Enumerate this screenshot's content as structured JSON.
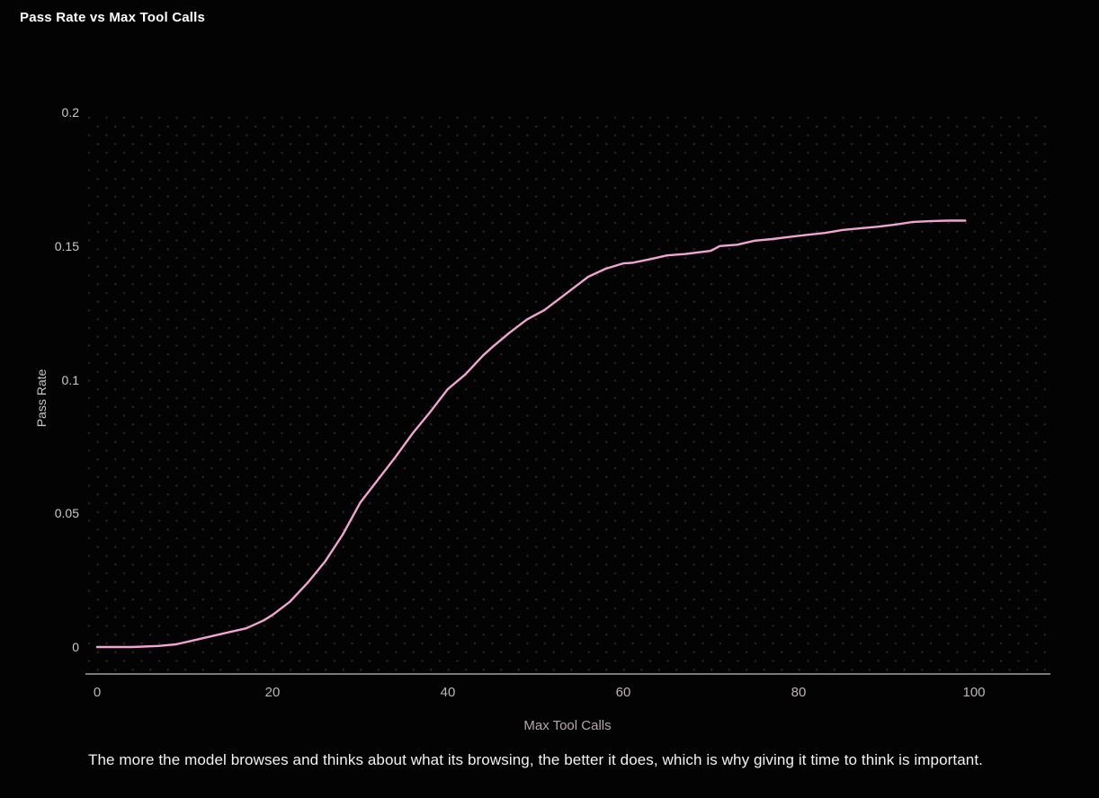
{
  "page": {
    "title": "Pass Rate vs Max Tool Calls",
    "caption": "The more the model browses and thinks about what its browsing, the better it does, which is why giving it time to think is important."
  },
  "colors": {
    "background": "#030303",
    "line": "#f0a4d2",
    "title_text": "#ffffff",
    "caption_text": "#f2f2f2",
    "y_tick_text": "#cbcbcb",
    "x_tick_text": "#bdb4bb",
    "axis_line": "#7a7a7a",
    "dot_grid": "#272727"
  },
  "chart_data": {
    "type": "line",
    "title": "Pass Rate vs Max Tool Calls",
    "xlabel": "Max Tool Calls",
    "ylabel": "Pass Rate",
    "xlim": [
      0,
      108
    ],
    "ylim": [
      -0.0095,
      0.2
    ],
    "x_ticks": [
      0,
      20,
      40,
      60,
      80,
      100
    ],
    "y_ticks": [
      {
        "value": 0,
        "label": "0"
      },
      {
        "value": 0.05,
        "label": "0.05"
      },
      {
        "value": 0.1,
        "label": "0.1"
      },
      {
        "value": 0.15,
        "label": "0.15"
      },
      {
        "value": 0.2,
        "label": "0.2"
      }
    ],
    "grid": "dotted background pattern, no gridlines",
    "legend": "none",
    "series": [
      {
        "name": "Pass Rate",
        "color": "#f0a4d2",
        "points": [
          [
            0,
            0.0
          ],
          [
            4,
            0.0
          ],
          [
            7,
            0.0004
          ],
          [
            9,
            0.001
          ],
          [
            11,
            0.0025
          ],
          [
            13,
            0.004
          ],
          [
            15,
            0.0055
          ],
          [
            17,
            0.007
          ],
          [
            19,
            0.01
          ],
          [
            20,
            0.012
          ],
          [
            22,
            0.017
          ],
          [
            24,
            0.024
          ],
          [
            26,
            0.032
          ],
          [
            28,
            0.042
          ],
          [
            30,
            0.054
          ],
          [
            32,
            0.0625
          ],
          [
            34,
            0.071
          ],
          [
            36,
            0.08
          ],
          [
            38,
            0.088
          ],
          [
            40,
            0.0965
          ],
          [
            42,
            0.102
          ],
          [
            44,
            0.109
          ],
          [
            45,
            0.112
          ],
          [
            47,
            0.1175
          ],
          [
            49,
            0.1225
          ],
          [
            51,
            0.126
          ],
          [
            53,
            0.131
          ],
          [
            55,
            0.136
          ],
          [
            56,
            0.1385
          ],
          [
            58,
            0.1415
          ],
          [
            60,
            0.1435
          ],
          [
            61,
            0.1437
          ],
          [
            63,
            0.145
          ],
          [
            65,
            0.1465
          ],
          [
            67,
            0.147
          ],
          [
            69,
            0.1478
          ],
          [
            70,
            0.1482
          ],
          [
            71,
            0.15
          ],
          [
            73,
            0.1505
          ],
          [
            75,
            0.152
          ],
          [
            77,
            0.1526
          ],
          [
            79,
            0.1534
          ],
          [
            81,
            0.1542
          ],
          [
            83,
            0.1549
          ],
          [
            85,
            0.156
          ],
          [
            87,
            0.1566
          ],
          [
            89,
            0.1572
          ],
          [
            91,
            0.158
          ],
          [
            93,
            0.159
          ],
          [
            95,
            0.1593
          ],
          [
            97,
            0.1595
          ],
          [
            99,
            0.1595
          ]
        ]
      }
    ]
  }
}
